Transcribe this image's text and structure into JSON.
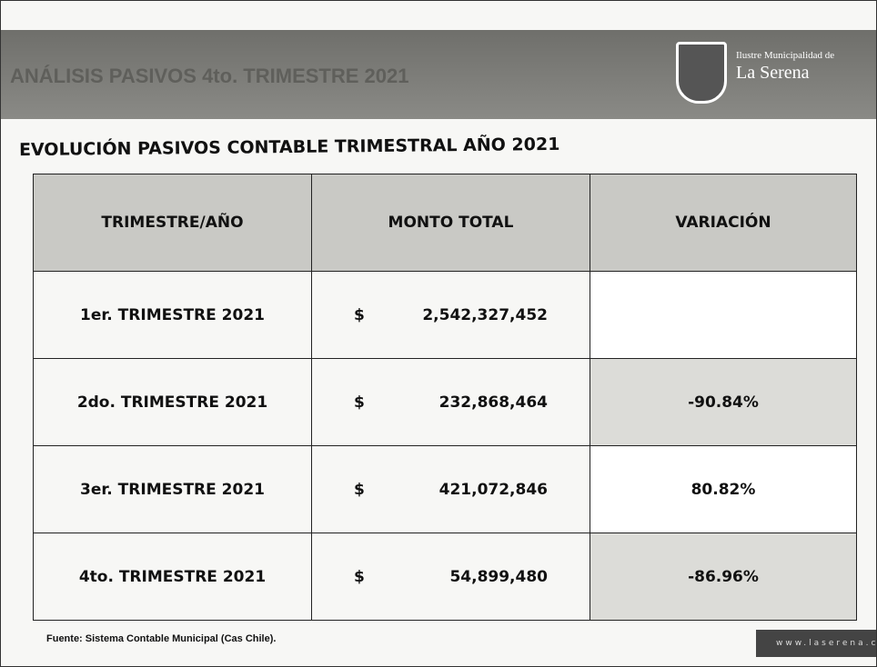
{
  "header": {
    "title": "ANÁLISIS PASIVOS 4to. TRIMESTRE 2021",
    "logo_line1": "Ilustre Municipalidad de",
    "logo_line2": "La Serena"
  },
  "subtitle": "EVOLUCIÓN PASIVOS CONTABLE TRIMESTRAL AÑO 2021",
  "table": {
    "columns": [
      "TRIMESTRE/AÑO",
      "MONTO TOTAL",
      "VARIACIÓN"
    ],
    "rows": [
      {
        "period": "1er. TRIMESTRE 2021",
        "currency": "$",
        "amount": "2,542,327,452"
      },
      {
        "period": "2do. TRIMESTRE 2021",
        "currency": "$",
        "amount": "232,868,464",
        "variation": "-90.84%"
      },
      {
        "period": "3er. TRIMESTRE 2021",
        "currency": "$",
        "amount": "421,072,846",
        "variation": "80.82%"
      },
      {
        "period": "4to. TRIMESTRE 2021",
        "currency": "$",
        "amount": "54,899,480",
        "variation": "-86.96%"
      }
    ]
  },
  "source": "Fuente: Sistema Contable Municipal (Cas Chile).",
  "footer": "www.laserena.c"
}
